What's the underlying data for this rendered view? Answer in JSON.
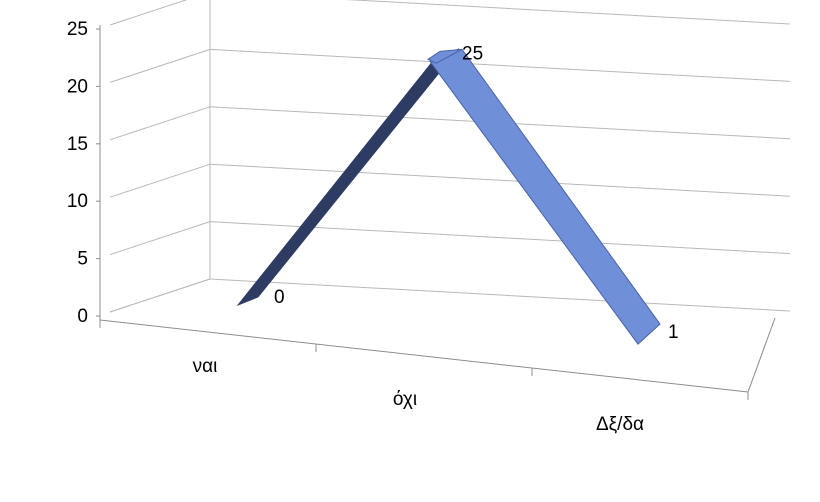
{
  "chart_data": {
    "type": "line",
    "title": "",
    "xlabel": "",
    "ylabel": "",
    "categories": [
      "ναι",
      "όχι",
      "Δξ/δα"
    ],
    "series": [
      {
        "values": [
          0,
          25,
          1
        ],
        "labels": [
          "0",
          "25",
          "1"
        ]
      }
    ],
    "ylim": [
      0,
      25
    ],
    "yticks": [
      "0",
      "5",
      "10",
      "15",
      "20",
      "25"
    ],
    "grid": true,
    "legend": "none",
    "view": "3d",
    "colors": {
      "ribbon_top": "#6f8fd8",
      "ribbon_side": "#2e3c63",
      "ribbon_edge": "#4a63a6",
      "gridline": "#b8b8b8",
      "axis": "#8c8c8c"
    }
  }
}
